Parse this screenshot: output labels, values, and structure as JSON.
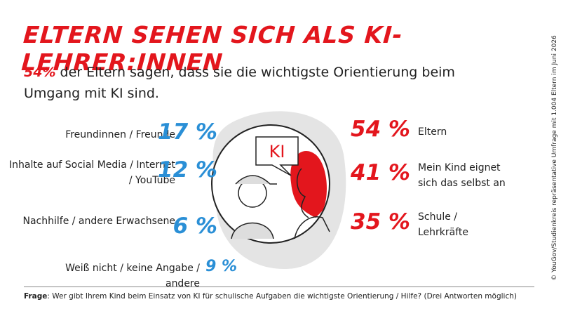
{
  "header": {
    "title": "ELTERN SEHEN SICH ALS KI-LEHRER:INNEN",
    "subtitle_highlight": "54%",
    "subtitle_text": " der Eltern sagen, dass sie die wichtigste Orientierung beim Umgang mit KI sind."
  },
  "left_items": [
    {
      "label": "Freundinnen / Freunde",
      "percent": "17 %"
    },
    {
      "label": "Inhalte auf Social Media / Internet / YouTube",
      "percent": "12 %"
    },
    {
      "label": "Nachhilfe / andere Erwachsene",
      "percent": "6 %"
    },
    {
      "label": "Weiß nicht / keine Angabe / andere",
      "percent": "9 %"
    }
  ],
  "right_items": [
    {
      "label": "Eltern",
      "percent": "54 %"
    },
    {
      "label": "Mein Kind eignet sich das selbst an",
      "percent": "41 %"
    },
    {
      "label": "Schule / Lehrkräfte",
      "percent": "35 %"
    }
  ],
  "illustration": {
    "bubble": "KI"
  },
  "footer": {
    "label": "Frage",
    "text": ": Wer gibt Ihrem Kind beim Einsatz von KI für schulische Aufgaben die wichtigste Orientierung / Hilfe? (Drei Antworten möglich)"
  },
  "source": "© YouGov/Studienkreis repräsentative Umfrage mit 1.004 Eltern im Juni 2026"
}
